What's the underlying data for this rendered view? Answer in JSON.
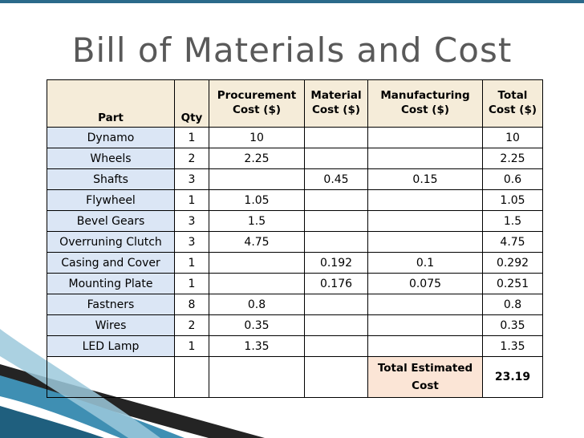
{
  "title": "Bill of Materials and Cost",
  "table": {
    "headers": {
      "part": "Part",
      "qty": "Qty",
      "procurement_line1": "Procurement",
      "procurement_line2": "Cost ($)",
      "material_line1": "Material",
      "material_line2": "Cost ($)",
      "manufacturing_line1": "Manufacturing",
      "manufacturing_line2": "Cost ($)",
      "total_line1": "Total",
      "total_line2": "Cost ($)"
    },
    "rows": [
      {
        "part": "Dynamo",
        "qty": "1",
        "procurement": "10",
        "material": "",
        "manufacturing": "",
        "total": "10"
      },
      {
        "part": "Wheels",
        "qty": "2",
        "procurement": "2.25",
        "material": "",
        "manufacturing": "",
        "total": "2.25"
      },
      {
        "part": "Shafts",
        "qty": "3",
        "procurement": "",
        "material": "0.45",
        "manufacturing": "0.15",
        "total": "0.6"
      },
      {
        "part": "Flywheel",
        "qty": "1",
        "procurement": "1.05",
        "material": "",
        "manufacturing": "",
        "total": "1.05"
      },
      {
        "part": "Bevel Gears",
        "qty": "3",
        "procurement": "1.5",
        "material": "",
        "manufacturing": "",
        "total": "1.5"
      },
      {
        "part": "Overruning Clutch",
        "qty": "3",
        "procurement": "4.75",
        "material": "",
        "manufacturing": "",
        "total": "4.75"
      },
      {
        "part": "Casing and Cover",
        "qty": "1",
        "procurement": "",
        "material": "0.192",
        "manufacturing": "0.1",
        "total": "0.292"
      },
      {
        "part": "Mounting Plate",
        "qty": "1",
        "procurement": "",
        "material": "0.176",
        "manufacturing": "0.075",
        "total": "0.251"
      },
      {
        "part": "Fastners",
        "qty": "8",
        "procurement": "0.8",
        "material": "",
        "manufacturing": "",
        "total": "0.8"
      },
      {
        "part": "Wires",
        "qty": "2",
        "procurement": "0.35",
        "material": "",
        "manufacturing": "",
        "total": "0.35"
      },
      {
        "part": "LED Lamp",
        "qty": "1",
        "procurement": "1.35",
        "material": "",
        "manufacturing": "",
        "total": "1.35"
      }
    ],
    "total_label_line1": "Total Estimated",
    "total_label_line2": "Cost",
    "total_value": "23.19"
  },
  "colors": {
    "header_fill": "#f5ecd9",
    "part_fill": "#dbe6f5",
    "total_label_fill": "#fbe5d6",
    "title_text": "#595959",
    "accent": "#2b6a8a"
  }
}
